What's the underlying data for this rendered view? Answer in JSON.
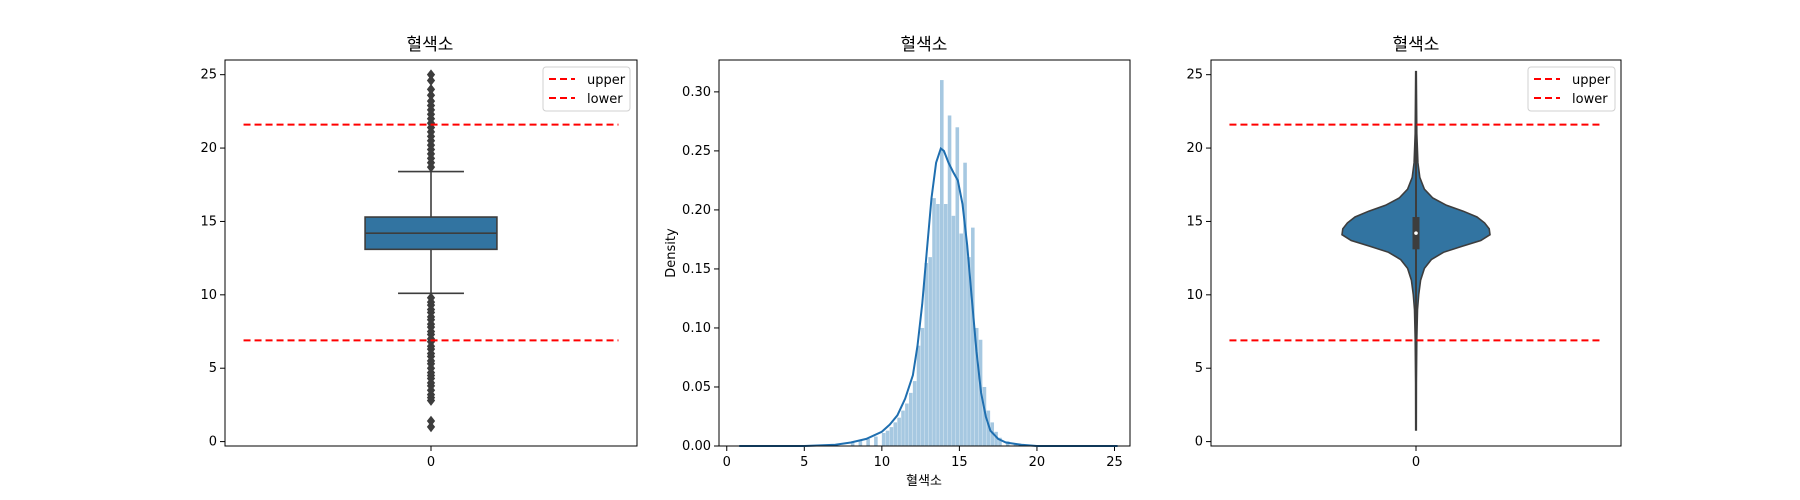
{
  "colors": {
    "box": "#3274a1",
    "hist": "#a6c8e1",
    "kde": "#1f6fb0",
    "edge": "#3d3d3d",
    "threshold": "#ff0000"
  },
  "chart_data": [
    {
      "type": "box",
      "title": "혈색소",
      "xlabel": "",
      "ylabel": "",
      "categories": [
        "0"
      ],
      "ylim": [
        -0.3,
        26
      ],
      "yticks": [
        "0",
        "5",
        "10",
        "15",
        "20",
        "25"
      ],
      "box": {
        "q1": 13.1,
        "median": 14.2,
        "q3": 15.3,
        "whisker_low": 10.1,
        "whisker_high": 18.4
      },
      "outliers_low": [
        1.0,
        1.4,
        2.8,
        3.0,
        3.2,
        3.5,
        3.8,
        4.0,
        4.3,
        4.5,
        4.7,
        5.0,
        5.3,
        5.5,
        5.8,
        6.0,
        6.3,
        6.5,
        6.8,
        7.0,
        7.3,
        7.5,
        7.8,
        8.0,
        8.3,
        8.5,
        8.8,
        9.0,
        9.3,
        9.5,
        9.8
      ],
      "outliers_high": [
        18.7,
        19.0,
        19.3,
        19.6,
        19.9,
        20.2,
        20.5,
        20.8,
        21.1,
        21.4,
        21.7,
        22.0,
        22.3,
        22.6,
        22.9,
        23.2,
        23.6,
        24.0,
        24.6,
        25.0
      ],
      "upper": 21.6,
      "lower": 6.9,
      "legend": [
        "upper",
        "lower"
      ],
      "legend_position": "top-right"
    },
    {
      "type": "histogram+kde",
      "title": "혈색소",
      "xlabel": "혈색소",
      "ylabel": "Density",
      "xlim": [
        -0.5,
        26
      ],
      "ylim": [
        0,
        0.327
      ],
      "xticks": [
        "0",
        "5",
        "10",
        "15",
        "20",
        "25"
      ],
      "yticks": [
        "0.00",
        "0.05",
        "0.10",
        "0.15",
        "0.20",
        "0.25",
        "0.30"
      ],
      "bin_width": 0.25,
      "bins": [
        {
          "x": 8.0,
          "y": 0.003
        },
        {
          "x": 8.5,
          "y": 0.005
        },
        {
          "x": 9.0,
          "y": 0.006
        },
        {
          "x": 9.5,
          "y": 0.008
        },
        {
          "x": 10.0,
          "y": 0.011
        },
        {
          "x": 10.25,
          "y": 0.013
        },
        {
          "x": 10.5,
          "y": 0.016
        },
        {
          "x": 10.75,
          "y": 0.02
        },
        {
          "x": 11.0,
          "y": 0.024
        },
        {
          "x": 11.25,
          "y": 0.03
        },
        {
          "x": 11.5,
          "y": 0.036
        },
        {
          "x": 11.75,
          "y": 0.045
        },
        {
          "x": 12.0,
          "y": 0.055
        },
        {
          "x": 12.25,
          "y": 0.085
        },
        {
          "x": 12.5,
          "y": 0.1
        },
        {
          "x": 12.75,
          "y": 0.155
        },
        {
          "x": 13.0,
          "y": 0.16
        },
        {
          "x": 13.25,
          "y": 0.21
        },
        {
          "x": 13.5,
          "y": 0.205
        },
        {
          "x": 13.75,
          "y": 0.31
        },
        {
          "x": 14.0,
          "y": 0.205
        },
        {
          "x": 14.25,
          "y": 0.28
        },
        {
          "x": 14.5,
          "y": 0.195
        },
        {
          "x": 14.75,
          "y": 0.27
        },
        {
          "x": 15.0,
          "y": 0.18
        },
        {
          "x": 15.25,
          "y": 0.24
        },
        {
          "x": 15.5,
          "y": 0.16
        },
        {
          "x": 15.75,
          "y": 0.185
        },
        {
          "x": 16.0,
          "y": 0.1
        },
        {
          "x": 16.25,
          "y": 0.09
        },
        {
          "x": 16.5,
          "y": 0.05
        },
        {
          "x": 16.75,
          "y": 0.03
        },
        {
          "x": 17.0,
          "y": 0.02
        },
        {
          "x": 17.25,
          "y": 0.012
        },
        {
          "x": 17.5,
          "y": 0.007
        },
        {
          "x": 18.0,
          "y": 0.004
        },
        {
          "x": 18.5,
          "y": 0.002
        }
      ],
      "kde": {
        "x": [
          0.8,
          5,
          7,
          8,
          9,
          10,
          10.5,
          11,
          11.5,
          12,
          12.3,
          12.6,
          12.9,
          13.2,
          13.5,
          13.8,
          14.0,
          14.3,
          14.6,
          14.9,
          15.2,
          15.5,
          15.8,
          16.1,
          16.4,
          16.7,
          17.0,
          17.5,
          18,
          19,
          20,
          25.2
        ],
        "y": [
          0,
          0,
          0.001,
          0.003,
          0.006,
          0.012,
          0.018,
          0.026,
          0.04,
          0.06,
          0.085,
          0.12,
          0.165,
          0.21,
          0.24,
          0.252,
          0.25,
          0.24,
          0.232,
          0.225,
          0.205,
          0.17,
          0.125,
          0.08,
          0.045,
          0.025,
          0.013,
          0.006,
          0.003,
          0.001,
          0,
          0
        ]
      }
    },
    {
      "type": "violin",
      "title": "혈색소",
      "xlabel": "",
      "ylabel": "",
      "categories": [
        "0"
      ],
      "ylim": [
        -0.3,
        26
      ],
      "yticks": [
        "0",
        "5",
        "10",
        "15",
        "20",
        "25"
      ],
      "range": [
        0.8,
        25.2
      ],
      "density": {
        "y": [
          0.8,
          4,
          7,
          9,
          10,
          11,
          11.8,
          12.4,
          12.9,
          13.3,
          13.7,
          14.1,
          14.5,
          14.9,
          15.3,
          15.7,
          16.1,
          16.6,
          17.2,
          18,
          19,
          21,
          25.2
        ],
        "w": [
          0.004,
          0.005,
          0.01,
          0.02,
          0.035,
          0.06,
          0.11,
          0.2,
          0.36,
          0.6,
          0.85,
          0.97,
          0.96,
          0.9,
          0.8,
          0.62,
          0.4,
          0.22,
          0.11,
          0.05,
          0.025,
          0.01,
          0.004
        ]
      },
      "box": {
        "q1": 13.1,
        "median": 14.2,
        "q3": 15.3
      },
      "upper": 21.6,
      "lower": 6.9,
      "legend": [
        "upper",
        "lower"
      ],
      "legend_position": "top-right"
    }
  ]
}
